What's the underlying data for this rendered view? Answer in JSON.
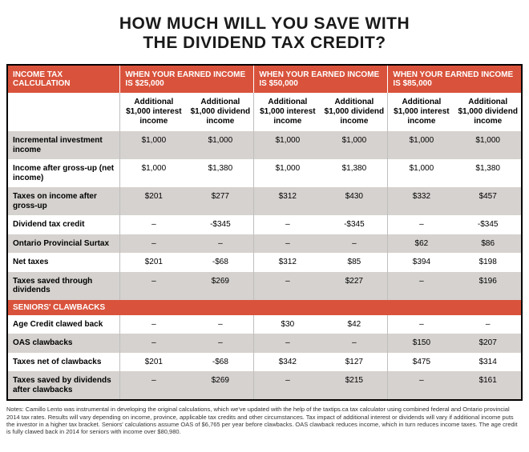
{
  "title_line1": "HOW MUCH WILL YOU SAVE WITH",
  "title_line2": "THE DIVIDEND TAX CREDIT?",
  "header": {
    "col0": "INCOME TAX CALCULATION",
    "col1": "WHEN YOUR EARNED INCOME IS $25,000",
    "col2": "WHEN YOUR EARNED INCOME IS $50,000",
    "col3": "WHEN YOUR EARNED INCOME IS $85,000"
  },
  "sub": {
    "interest": "Additional $1,000 interest income",
    "dividend": "Additional $1,000 dividend income"
  },
  "rows": [
    {
      "label": "Incremental investment income",
      "v": [
        "$1,000",
        "$1,000",
        "$1,000",
        "$1,000",
        "$1,000",
        "$1,000"
      ],
      "alt": true
    },
    {
      "label": "Income after gross-up (net income)",
      "v": [
        "$1,000",
        "$1,380",
        "$1,000",
        "$1,380",
        "$1,000",
        "$1,380"
      ],
      "alt": false
    },
    {
      "label": "Taxes on income after gross-up",
      "v": [
        "$201",
        "$277",
        "$312",
        "$430",
        "$332",
        "$457"
      ],
      "alt": true
    },
    {
      "label": "Dividend tax credit",
      "v": [
        "–",
        "-$345",
        "–",
        "-$345",
        "–",
        "-$345"
      ],
      "alt": false
    },
    {
      "label": "Ontario Provincial Surtax",
      "v": [
        "–",
        "–",
        "–",
        "–",
        "$62",
        "$86"
      ],
      "alt": true
    },
    {
      "label": "Net taxes",
      "v": [
        "$201",
        "-$68",
        "$312",
        "$85",
        "$394",
        "$198"
      ],
      "alt": false
    },
    {
      "label": "Taxes saved through dividends",
      "v": [
        "–",
        "$269",
        "–",
        "$227",
        "–",
        "$196"
      ],
      "alt": true
    }
  ],
  "section2_label": "SENIORS' CLAWBACKS",
  "rows2": [
    {
      "label": "Age Credit clawed back",
      "v": [
        "–",
        "–",
        "$30",
        "$42",
        "–",
        "–"
      ],
      "alt": false
    },
    {
      "label": "OAS clawbacks",
      "v": [
        "–",
        "–",
        "–",
        "–",
        "$150",
        "$207"
      ],
      "alt": true
    },
    {
      "label": "Taxes net of clawbacks",
      "v": [
        "$201",
        "-$68",
        "$342",
        "$127",
        "$475",
        "$314"
      ],
      "alt": false
    },
    {
      "label": "Taxes saved by dividends after clawbacks",
      "v": [
        "–",
        "$269",
        "–",
        "$215",
        "–",
        "$161"
      ],
      "alt": true
    }
  ],
  "notes": "Notes: Camillo Lento was instrumental in developing the original calculations, which we've updated with the help of the taxtips.ca tax calculator using combined federal and Ontario provincial 2014 tax rates. Results will vary depending on income, province, applicable tax credits and other circumstances. Tax impact of additional interest or dividends will vary if additional income puts the investor in a higher tax bracket. Seniors' calculations assume OAS of $6,765 per year before clawbacks. OAS clawback reduces income, which in turn reduces income taxes. The age credit is fully clawed back in 2014 for seniors with income over $80,980."
}
